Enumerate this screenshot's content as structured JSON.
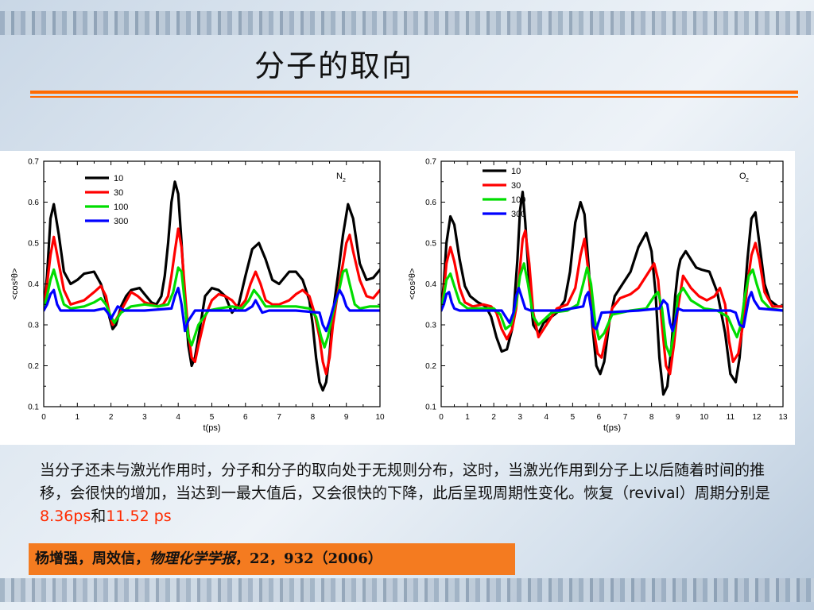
{
  "slide": {
    "title": "分子的取向",
    "body_pre": "当分子还未与激光作用时，分子和分子的取向处于无规则分布，这时，当激光作用到分子上以后随着时间的推移，会很快的增加，当达到一最大值后，又会很快的下降，此后呈现周期性变化。恢复（revival）周期分别是",
    "body_v1": "8.36ps",
    "body_mid": "和",
    "body_v2": "11.52 ps",
    "citation_authors": "杨增强，周效信，",
    "citation_journal": "物理化学学报",
    "citation_rest": "，22，932（2006）"
  },
  "chart_data": [
    {
      "type": "line",
      "label": "N",
      "label_sub": "2",
      "xlabel": "t(ps)",
      "ylabel": "<cos²θ>",
      "xlim": [
        0,
        10
      ],
      "ylim": [
        0.1,
        0.7
      ],
      "xticks": [
        0,
        1,
        2,
        3,
        4,
        5,
        6,
        7,
        8,
        9,
        10
      ],
      "yticks": [
        0.1,
        0.2,
        0.3,
        0.4,
        0.5,
        0.6,
        0.7
      ],
      "legend_position": "top-left",
      "series": [
        {
          "name": "10",
          "color": "#000000",
          "x": [
            0,
            0.1,
            0.2,
            0.3,
            0.45,
            0.6,
            0.8,
            1.0,
            1.2,
            1.5,
            1.7,
            1.85,
            1.95,
            2.05,
            2.15,
            2.3,
            2.45,
            2.6,
            2.85,
            3.0,
            3.2,
            3.35,
            3.5,
            3.6,
            3.7,
            3.8,
            3.9,
            4.0,
            4.1,
            4.2,
            4.3,
            4.4,
            4.5,
            4.6,
            4.7,
            4.8,
            5.0,
            5.2,
            5.4,
            5.6,
            5.8,
            6.0,
            6.2,
            6.4,
            6.6,
            6.8,
            7.0,
            7.3,
            7.5,
            7.7,
            7.9,
            8.0,
            8.1,
            8.2,
            8.3,
            8.4,
            8.5,
            8.6,
            8.75,
            8.9,
            9.05,
            9.2,
            9.4,
            9.6,
            9.8,
            10.0
          ],
          "y": [
            0.34,
            0.42,
            0.56,
            0.595,
            0.52,
            0.43,
            0.4,
            0.41,
            0.425,
            0.43,
            0.4,
            0.36,
            0.32,
            0.29,
            0.3,
            0.345,
            0.37,
            0.385,
            0.39,
            0.375,
            0.355,
            0.35,
            0.37,
            0.42,
            0.5,
            0.6,
            0.65,
            0.62,
            0.5,
            0.36,
            0.25,
            0.2,
            0.22,
            0.27,
            0.32,
            0.37,
            0.39,
            0.385,
            0.37,
            0.33,
            0.35,
            0.42,
            0.485,
            0.5,
            0.46,
            0.41,
            0.4,
            0.43,
            0.43,
            0.41,
            0.36,
            0.3,
            0.22,
            0.16,
            0.14,
            0.16,
            0.23,
            0.33,
            0.42,
            0.52,
            0.595,
            0.56,
            0.45,
            0.41,
            0.415,
            0.435
          ]
        },
        {
          "name": "30",
          "color": "#ff0000",
          "x": [
            0,
            0.1,
            0.2,
            0.3,
            0.45,
            0.6,
            0.8,
            1.0,
            1.2,
            1.5,
            1.7,
            1.85,
            1.95,
            2.05,
            2.2,
            2.4,
            2.6,
            2.8,
            3.0,
            3.2,
            3.4,
            3.55,
            3.7,
            3.8,
            3.9,
            4.0,
            4.1,
            4.2,
            4.3,
            4.4,
            4.5,
            4.6,
            4.8,
            5.0,
            5.2,
            5.4,
            5.6,
            5.8,
            6.0,
            6.15,
            6.3,
            6.45,
            6.6,
            6.8,
            7.0,
            7.3,
            7.5,
            7.7,
            7.9,
            8.05,
            8.2,
            8.3,
            8.4,
            8.5,
            8.6,
            8.75,
            8.9,
            9.0,
            9.1,
            9.2,
            9.4,
            9.6,
            9.8,
            10.0
          ],
          "y": [
            0.34,
            0.4,
            0.47,
            0.515,
            0.45,
            0.385,
            0.35,
            0.355,
            0.36,
            0.38,
            0.395,
            0.37,
            0.33,
            0.3,
            0.32,
            0.35,
            0.38,
            0.37,
            0.355,
            0.35,
            0.345,
            0.35,
            0.37,
            0.42,
            0.48,
            0.535,
            0.49,
            0.38,
            0.28,
            0.22,
            0.21,
            0.25,
            0.32,
            0.36,
            0.375,
            0.37,
            0.36,
            0.34,
            0.36,
            0.4,
            0.43,
            0.4,
            0.36,
            0.35,
            0.35,
            0.36,
            0.375,
            0.385,
            0.37,
            0.33,
            0.27,
            0.21,
            0.18,
            0.22,
            0.3,
            0.38,
            0.45,
            0.5,
            0.52,
            0.48,
            0.41,
            0.37,
            0.365,
            0.385
          ]
        },
        {
          "name": "100",
          "color": "#00dd00",
          "x": [
            0,
            0.1,
            0.2,
            0.3,
            0.45,
            0.6,
            0.8,
            1.2,
            1.5,
            1.7,
            1.85,
            2.0,
            2.1,
            2.3,
            2.6,
            3.0,
            3.4,
            3.7,
            3.85,
            4.0,
            4.1,
            4.2,
            4.3,
            4.4,
            4.6,
            4.9,
            5.2,
            5.6,
            5.9,
            6.1,
            6.25,
            6.4,
            6.6,
            7.0,
            7.5,
            7.9,
            8.1,
            8.25,
            8.35,
            8.45,
            8.6,
            8.8,
            8.9,
            9.0,
            9.1,
            9.25,
            9.4,
            9.7,
            10.0
          ],
          "y": [
            0.34,
            0.37,
            0.41,
            0.435,
            0.39,
            0.35,
            0.34,
            0.345,
            0.355,
            0.365,
            0.35,
            0.32,
            0.305,
            0.33,
            0.345,
            0.35,
            0.345,
            0.35,
            0.38,
            0.44,
            0.43,
            0.35,
            0.27,
            0.25,
            0.3,
            0.335,
            0.34,
            0.345,
            0.34,
            0.36,
            0.385,
            0.37,
            0.345,
            0.345,
            0.345,
            0.34,
            0.32,
            0.27,
            0.245,
            0.27,
            0.33,
            0.39,
            0.43,
            0.435,
            0.4,
            0.35,
            0.34,
            0.345,
            0.345
          ]
        },
        {
          "name": "300",
          "color": "#0000ff",
          "x": [
            0,
            0.1,
            0.2,
            0.3,
            0.4,
            0.5,
            0.8,
            1.5,
            1.8,
            1.9,
            2.0,
            2.1,
            2.2,
            2.4,
            3.0,
            3.8,
            3.9,
            4.0,
            4.1,
            4.2,
            4.3,
            4.5,
            5.0,
            6.0,
            6.2,
            6.3,
            6.4,
            6.5,
            6.7,
            7.5,
            8.2,
            8.3,
            8.4,
            8.5,
            8.6,
            8.7,
            8.8,
            8.9,
            9.0,
            9.1,
            9.3,
            10.0
          ],
          "y": [
            0.335,
            0.35,
            0.375,
            0.385,
            0.35,
            0.335,
            0.335,
            0.335,
            0.34,
            0.33,
            0.315,
            0.33,
            0.345,
            0.335,
            0.335,
            0.34,
            0.37,
            0.39,
            0.35,
            0.285,
            0.31,
            0.335,
            0.335,
            0.335,
            0.345,
            0.36,
            0.345,
            0.33,
            0.335,
            0.335,
            0.33,
            0.3,
            0.285,
            0.31,
            0.34,
            0.365,
            0.385,
            0.37,
            0.345,
            0.335,
            0.335,
            0.335
          ]
        }
      ]
    },
    {
      "type": "line",
      "label": "O",
      "label_sub": "2",
      "xlabel": "t(ps)",
      "ylabel": "<cos²θ>",
      "xlim": [
        0,
        13
      ],
      "ylim": [
        0.1,
        0.7
      ],
      "xticks": [
        0,
        1,
        2,
        3,
        4,
        5,
        6,
        7,
        8,
        9,
        10,
        11,
        12,
        13
      ],
      "yticks": [
        0.1,
        0.2,
        0.3,
        0.4,
        0.5,
        0.6,
        0.7
      ],
      "legend_position": "top-left",
      "series": [
        {
          "name": "10",
          "color": "#000000",
          "x": [
            0,
            0.1,
            0.2,
            0.35,
            0.5,
            0.7,
            0.9,
            1.1,
            1.4,
            1.7,
            1.9,
            2.1,
            2.3,
            2.5,
            2.7,
            2.8,
            2.9,
            3.0,
            3.1,
            3.2,
            3.35,
            3.5,
            3.7,
            3.9,
            4.1,
            4.4,
            4.7,
            4.9,
            5.1,
            5.3,
            5.45,
            5.6,
            5.75,
            5.9,
            6.05,
            6.2,
            6.4,
            6.6,
            6.9,
            7.2,
            7.5,
            7.8,
            8.0,
            8.15,
            8.3,
            8.45,
            8.6,
            8.75,
            8.9,
            9.0,
            9.1,
            9.3,
            9.5,
            9.7,
            9.9,
            10.2,
            10.5,
            10.8,
            11.0,
            11.2,
            11.35,
            11.5,
            11.65,
            11.8,
            11.95,
            12.1,
            12.3,
            12.5,
            12.8,
            13.0
          ],
          "y": [
            0.335,
            0.4,
            0.5,
            0.565,
            0.545,
            0.46,
            0.395,
            0.37,
            0.355,
            0.345,
            0.32,
            0.27,
            0.235,
            0.24,
            0.29,
            0.37,
            0.46,
            0.58,
            0.625,
            0.55,
            0.4,
            0.3,
            0.28,
            0.305,
            0.315,
            0.33,
            0.36,
            0.43,
            0.55,
            0.6,
            0.57,
            0.45,
            0.3,
            0.2,
            0.18,
            0.21,
            0.31,
            0.37,
            0.4,
            0.43,
            0.49,
            0.525,
            0.48,
            0.38,
            0.22,
            0.13,
            0.15,
            0.24,
            0.37,
            0.43,
            0.46,
            0.48,
            0.46,
            0.44,
            0.435,
            0.43,
            0.38,
            0.28,
            0.18,
            0.16,
            0.22,
            0.34,
            0.46,
            0.56,
            0.575,
            0.5,
            0.4,
            0.36,
            0.345,
            0.345
          ]
        },
        {
          "name": "30",
          "color": "#ff0000",
          "x": [
            0,
            0.1,
            0.2,
            0.35,
            0.5,
            0.7,
            0.9,
            1.2,
            1.6,
            1.9,
            2.1,
            2.3,
            2.5,
            2.7,
            2.85,
            3.0,
            3.1,
            3.2,
            3.35,
            3.5,
            3.7,
            4.0,
            4.4,
            4.8,
            5.1,
            5.3,
            5.45,
            5.6,
            5.8,
            5.95,
            6.1,
            6.3,
            6.5,
            6.8,
            7.2,
            7.5,
            7.8,
            8.1,
            8.25,
            8.4,
            8.55,
            8.7,
            8.85,
            9.0,
            9.2,
            9.5,
            9.8,
            10.1,
            10.4,
            10.6,
            10.8,
            10.95,
            11.1,
            11.3,
            11.5,
            11.65,
            11.8,
            11.95,
            12.1,
            12.3,
            12.6,
            13.0
          ],
          "y": [
            0.335,
            0.38,
            0.45,
            0.49,
            0.455,
            0.39,
            0.355,
            0.345,
            0.35,
            0.345,
            0.33,
            0.29,
            0.265,
            0.29,
            0.34,
            0.44,
            0.51,
            0.53,
            0.45,
            0.33,
            0.27,
            0.3,
            0.34,
            0.35,
            0.39,
            0.47,
            0.51,
            0.43,
            0.29,
            0.23,
            0.22,
            0.28,
            0.34,
            0.365,
            0.375,
            0.39,
            0.42,
            0.45,
            0.41,
            0.3,
            0.2,
            0.18,
            0.25,
            0.34,
            0.42,
            0.39,
            0.37,
            0.36,
            0.37,
            0.39,
            0.35,
            0.26,
            0.21,
            0.23,
            0.31,
            0.4,
            0.47,
            0.5,
            0.46,
            0.38,
            0.345,
            0.345
          ]
        },
        {
          "name": "100",
          "color": "#00dd00",
          "x": [
            0,
            0.1,
            0.2,
            0.35,
            0.5,
            0.7,
            1.0,
            1.6,
            2.0,
            2.25,
            2.45,
            2.65,
            2.85,
            3.0,
            3.15,
            3.3,
            3.5,
            3.7,
            4.2,
            4.8,
            5.2,
            5.4,
            5.55,
            5.7,
            5.85,
            6.0,
            6.2,
            6.5,
            7.2,
            7.8,
            8.1,
            8.25,
            8.4,
            8.55,
            8.7,
            8.85,
            9.0,
            9.2,
            9.5,
            10.0,
            10.5,
            10.9,
            11.1,
            11.25,
            11.4,
            11.55,
            11.7,
            11.85,
            12.0,
            12.2,
            12.5,
            13.0
          ],
          "y": [
            0.335,
            0.37,
            0.41,
            0.425,
            0.395,
            0.355,
            0.34,
            0.34,
            0.34,
            0.325,
            0.29,
            0.3,
            0.35,
            0.42,
            0.45,
            0.4,
            0.32,
            0.3,
            0.33,
            0.335,
            0.35,
            0.4,
            0.44,
            0.4,
            0.31,
            0.265,
            0.28,
            0.325,
            0.335,
            0.34,
            0.37,
            0.38,
            0.34,
            0.25,
            0.225,
            0.28,
            0.37,
            0.39,
            0.36,
            0.34,
            0.335,
            0.32,
            0.29,
            0.27,
            0.3,
            0.37,
            0.42,
            0.435,
            0.4,
            0.36,
            0.34,
            0.335
          ]
        },
        {
          "name": "300",
          "color": "#0000ff",
          "x": [
            0,
            0.1,
            0.2,
            0.3,
            0.4,
            0.5,
            0.7,
            1.5,
            2.3,
            2.45,
            2.6,
            2.75,
            2.85,
            2.95,
            3.05,
            3.2,
            3.4,
            4.5,
            5.4,
            5.5,
            5.6,
            5.7,
            5.8,
            5.9,
            6.1,
            7.5,
            8.3,
            8.45,
            8.6,
            8.7,
            8.8,
            8.9,
            9.0,
            9.2,
            10.5,
            11.0,
            11.2,
            11.35,
            11.5,
            11.6,
            11.7,
            11.8,
            11.9,
            12.1,
            13.0
          ],
          "y": [
            0.335,
            0.35,
            0.375,
            0.38,
            0.355,
            0.34,
            0.335,
            0.335,
            0.335,
            0.32,
            0.305,
            0.33,
            0.37,
            0.39,
            0.37,
            0.34,
            0.335,
            0.335,
            0.345,
            0.37,
            0.38,
            0.34,
            0.295,
            0.29,
            0.33,
            0.335,
            0.34,
            0.36,
            0.35,
            0.305,
            0.285,
            0.31,
            0.34,
            0.335,
            0.335,
            0.335,
            0.33,
            0.3,
            0.295,
            0.33,
            0.365,
            0.38,
            0.36,
            0.34,
            0.335
          ]
        }
      ]
    }
  ]
}
